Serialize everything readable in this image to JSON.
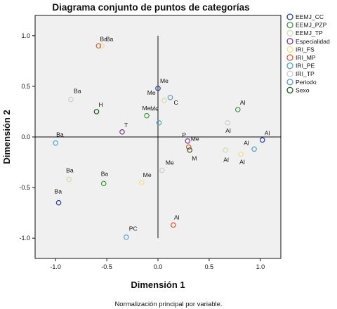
{
  "chart_data": {
    "type": "scatter",
    "title": "Diagrama conjunto de puntos de categorías",
    "xlabel": "Dimensión 1",
    "ylabel": "Dimensión 2",
    "footnote": "Normalización principal por variable.",
    "xlim": [
      -1.2,
      1.2
    ],
    "ylim": [
      -1.2,
      1.2
    ],
    "xticks": [
      -1.0,
      -0.5,
      0.0,
      0.5,
      1.0
    ],
    "xtick_labels": [
      "-1.0",
      "-0.5",
      "0.0",
      "0.5",
      "1.0"
    ],
    "yticks": [
      1.0,
      0.5,
      0.0,
      -0.5,
      -1.0
    ],
    "ytick_labels": [
      "1.0",
      "0.5",
      "0.0",
      "-0.5",
      "-1.0"
    ],
    "legend_position": "right",
    "series": [
      {
        "name": "EEMJ_CC",
        "color": "#2e3f9e",
        "points": [
          {
            "label": "Al",
            "x": 1.02,
            "y": -0.03
          },
          {
            "label": "Ba",
            "x": -0.97,
            "y": -0.65
          },
          {
            "label": "Me",
            "x": 0.0,
            "y": 0.48
          }
        ]
      },
      {
        "name": "EEMJ_PZP",
        "color": "#3f9a3f",
        "points": [
          {
            "label": "Al",
            "x": 0.78,
            "y": 0.27
          },
          {
            "label": "Ba",
            "x": -0.53,
            "y": -0.46
          },
          {
            "label": "Me",
            "x": -0.11,
            "y": 0.21
          }
        ]
      },
      {
        "name": "EEMJ_TP",
        "color": "#d8d8b0",
        "points": [
          {
            "label": "Al",
            "x": 0.66,
            "y": -0.13
          },
          {
            "label": "Ba",
            "x": -0.87,
            "y": -0.42
          },
          {
            "label": "Me",
            "x": 0.06,
            "y": 0.36
          }
        ]
      },
      {
        "name": "Especialidad",
        "color": "#7a3a8c",
        "points": [
          {
            "label": "P",
            "x": 0.29,
            "y": -0.04
          },
          {
            "label": "T",
            "x": -0.35,
            "y": 0.05
          }
        ]
      },
      {
        "name": "IRI_FS",
        "color": "#f0e08a",
        "points": [
          {
            "label": "Al",
            "x": 0.81,
            "y": -0.17
          },
          {
            "label": "Ba",
            "x": -0.55,
            "y": 0.9
          },
          {
            "label": "Me",
            "x": -0.16,
            "y": -0.45
          }
        ]
      },
      {
        "name": "IRI_MP",
        "color": "#e2582c",
        "points": [
          {
            "label": "Al",
            "x": 0.15,
            "y": -0.87
          },
          {
            "label": "Ba",
            "x": -0.58,
            "y": 0.9
          },
          {
            "label": "Me",
            "x": 0.3,
            "y": -0.1
          }
        ]
      },
      {
        "name": "IRI_PE",
        "color": "#4aa7c4",
        "points": [
          {
            "label": "Al",
            "x": 0.94,
            "y": -0.12
          },
          {
            "label": "Ba",
            "x": -1.0,
            "y": -0.06
          },
          {
            "label": "Me",
            "x": 0.01,
            "y": 0.14
          }
        ]
      },
      {
        "name": "IRI_TP",
        "color": "#cfcfcf",
        "points": [
          {
            "label": "Al",
            "x": 0.68,
            "y": 0.14
          },
          {
            "label": "Ba",
            "x": -0.85,
            "y": 0.37
          },
          {
            "label": "Me",
            "x": 0.04,
            "y": -0.33
          }
        ]
      },
      {
        "name": "Periodo",
        "color": "#5b9bd5",
        "points": [
          {
            "label": "C",
            "x": 0.12,
            "y": 0.39
          },
          {
            "label": "PC",
            "x": -0.31,
            "y": -0.99
          }
        ]
      },
      {
        "name": "Sexo",
        "color": "#1d5c1d",
        "points": [
          {
            "label": "H",
            "x": -0.6,
            "y": 0.25
          },
          {
            "label": "M",
            "x": 0.31,
            "y": -0.13
          }
        ]
      }
    ]
  }
}
